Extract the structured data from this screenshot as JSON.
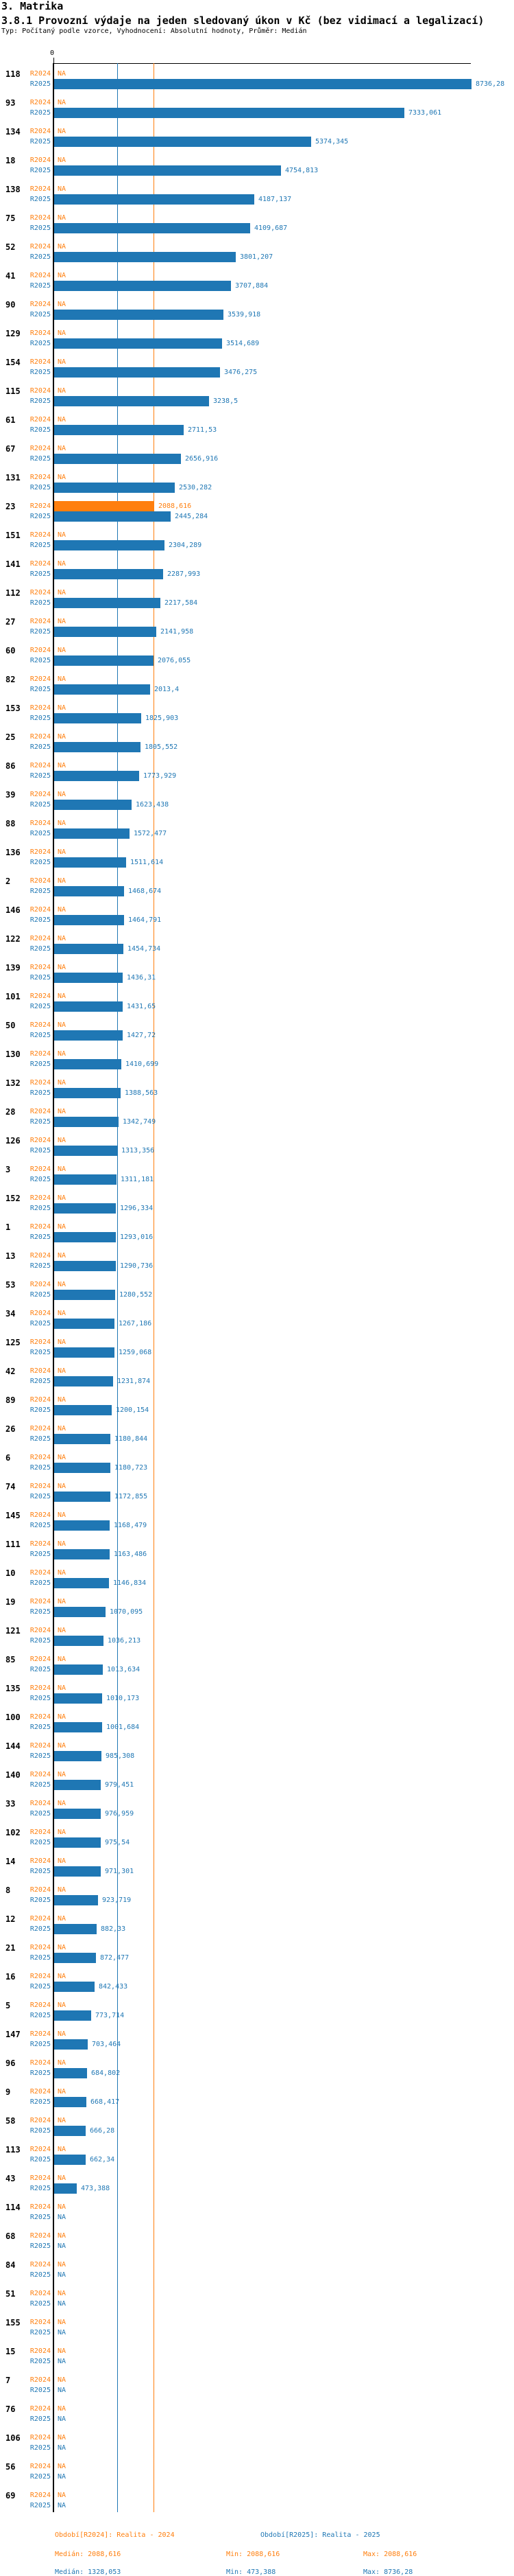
{
  "chart_data": {
    "type": "bar",
    "orientation": "horizontal",
    "title": "3. Matrika",
    "subtitle": "3.8.1 Provozní výdaje na jeden sledovaný úkon v Kč (bez vidimací a legalizací)",
    "note": "Typ: Počítaný podle vzorce, Vyhodnocení: Absolutní hodnoty, Průměr: Medián",
    "value_unit": "Kč",
    "na_label": "NA",
    "decimal_separator": ",",
    "x_axis": {
      "min": 0,
      "max": 8736.28,
      "zero_label": "0",
      "grid": false
    },
    "legend_position": "bottom",
    "series": [
      {
        "name": "R2024",
        "color": "#ff7f0e",
        "legend": "Období[R2024]: Realita - 2024",
        "median": 2088.616,
        "stats": {
          "median": "Medián: 2088,616",
          "min": "Min: 2088,616",
          "max": "Max: 2088,616"
        }
      },
      {
        "name": "R2025",
        "color": "#1f77b4",
        "legend": "Období[R2025]: Realita - 2025",
        "median": 1328.053,
        "stats": {
          "median": "Medián: 1328,053",
          "min": "Min: 473,388",
          "max": "Max: 8736,28"
        }
      }
    ],
    "rows": [
      [
        "118",
        null,
        8736.28
      ],
      [
        "93",
        null,
        7333.061
      ],
      [
        "134",
        null,
        5374.345
      ],
      [
        "18",
        null,
        4754.813
      ],
      [
        "138",
        null,
        4187.137
      ],
      [
        "75",
        null,
        4109.687
      ],
      [
        "52",
        null,
        3801.207
      ],
      [
        "41",
        null,
        3707.884
      ],
      [
        "90",
        null,
        3539.918
      ],
      [
        "129",
        null,
        3514.689
      ],
      [
        "154",
        null,
        3476.275
      ],
      [
        "115",
        null,
        3238.5
      ],
      [
        "61",
        null,
        2711.53
      ],
      [
        "67",
        null,
        2656.916
      ],
      [
        "131",
        null,
        2530.282
      ],
      [
        "23",
        2088.616,
        2445.284
      ],
      [
        "151",
        null,
        2304.289
      ],
      [
        "141",
        null,
        2287.993
      ],
      [
        "112",
        null,
        2217.584
      ],
      [
        "27",
        null,
        2141.958
      ],
      [
        "60",
        null,
        2076.055
      ],
      [
        "82",
        null,
        2013.4
      ],
      [
        "153",
        null,
        1825.903
      ],
      [
        "25",
        null,
        1805.552
      ],
      [
        "86",
        null,
        1773.929
      ],
      [
        "39",
        null,
        1623.438
      ],
      [
        "88",
        null,
        1572.477
      ],
      [
        "136",
        null,
        1511.614
      ],
      [
        "2",
        null,
        1468.674
      ],
      [
        "146",
        null,
        1464.791
      ],
      [
        "122",
        null,
        1454.734
      ],
      [
        "139",
        null,
        1436.31
      ],
      [
        "101",
        null,
        1431.65
      ],
      [
        "50",
        null,
        1427.72
      ],
      [
        "130",
        null,
        1410.699
      ],
      [
        "132",
        null,
        1388.563
      ],
      [
        "28",
        null,
        1342.749
      ],
      [
        "126",
        null,
        1313.356
      ],
      [
        "3",
        null,
        1311.181
      ],
      [
        "152",
        null,
        1296.334
      ],
      [
        "1",
        null,
        1293.016
      ],
      [
        "13",
        null,
        1290.736
      ],
      [
        "53",
        null,
        1280.552
      ],
      [
        "34",
        null,
        1267.186
      ],
      [
        "125",
        null,
        1259.068
      ],
      [
        "42",
        null,
        1231.874
      ],
      [
        "89",
        null,
        1200.154
      ],
      [
        "26",
        null,
        1180.844
      ],
      [
        "6",
        null,
        1180.723
      ],
      [
        "74",
        null,
        1172.855
      ],
      [
        "145",
        null,
        1168.479
      ],
      [
        "111",
        null,
        1163.486
      ],
      [
        "10",
        null,
        1146.834
      ],
      [
        "19",
        null,
        1070.095
      ],
      [
        "121",
        null,
        1036.213
      ],
      [
        "85",
        null,
        1013.634
      ],
      [
        "135",
        null,
        1010.173
      ],
      [
        "100",
        null,
        1001.684
      ],
      [
        "144",
        null,
        985.308
      ],
      [
        "140",
        null,
        979.451
      ],
      [
        "33",
        null,
        976.959
      ],
      [
        "102",
        null,
        975.54
      ],
      [
        "14",
        null,
        971.301
      ],
      [
        "8",
        null,
        923.719
      ],
      [
        "12",
        null,
        882.33
      ],
      [
        "21",
        null,
        872.477
      ],
      [
        "16",
        null,
        842.433
      ],
      [
        "5",
        null,
        773.714
      ],
      [
        "147",
        null,
        703.464
      ],
      [
        "96",
        null,
        684.802
      ],
      [
        "9",
        null,
        668.417
      ],
      [
        "58",
        null,
        666.28
      ],
      [
        "113",
        null,
        662.34
      ],
      [
        "43",
        null,
        473.388
      ],
      [
        "114",
        null,
        null
      ],
      [
        "68",
        null,
        null
      ],
      [
        "84",
        null,
        null
      ],
      [
        "51",
        null,
        null
      ],
      [
        "155",
        null,
        null
      ],
      [
        "15",
        null,
        null
      ],
      [
        "7",
        null,
        null
      ],
      [
        "76",
        null,
        null
      ],
      [
        "106",
        null,
        null
      ],
      [
        "56",
        null,
        null
      ],
      [
        "69",
        null,
        null
      ]
    ]
  }
}
